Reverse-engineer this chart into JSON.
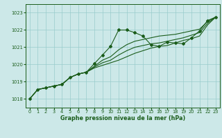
{
  "title": "Graphe pression niveau de la mer (hPa)",
  "bg_color": "#cce8e8",
  "grid_color": "#99cccc",
  "line_color": "#1a5c1a",
  "text_color": "#1a5c1a",
  "xlim": [
    -0.5,
    23.5
  ],
  "ylim": [
    1017.5,
    1023.5
  ],
  "yticks": [
    1018,
    1019,
    1020,
    1021,
    1022,
    1023
  ],
  "xticks": [
    0,
    1,
    2,
    3,
    4,
    5,
    6,
    7,
    8,
    9,
    10,
    11,
    12,
    13,
    14,
    15,
    16,
    17,
    18,
    19,
    20,
    21,
    22,
    23
  ],
  "series": [
    [
      1018.0,
      1018.55,
      1018.65,
      1018.75,
      1018.85,
      1019.25,
      1019.45,
      1019.55,
      1020.05,
      1020.55,
      1021.05,
      1022.0,
      1022.0,
      1021.85,
      1021.65,
      1021.15,
      1021.05,
      1021.3,
      1021.25,
      1021.2,
      1021.55,
      1021.95,
      1022.55,
      1022.75
    ],
    [
      1018.0,
      1018.55,
      1018.65,
      1018.75,
      1018.85,
      1019.25,
      1019.45,
      1019.55,
      1019.9,
      1020.25,
      1020.45,
      1020.85,
      1021.15,
      1021.35,
      1021.45,
      1021.55,
      1021.65,
      1021.7,
      1021.75,
      1021.85,
      1021.95,
      1022.05,
      1022.5,
      1022.75
    ],
    [
      1018.0,
      1018.55,
      1018.65,
      1018.75,
      1018.85,
      1019.25,
      1019.45,
      1019.55,
      1019.85,
      1020.1,
      1020.25,
      1020.55,
      1020.8,
      1021.0,
      1021.1,
      1021.2,
      1021.25,
      1021.35,
      1021.45,
      1021.55,
      1021.7,
      1021.85,
      1022.4,
      1022.75
    ],
    [
      1018.0,
      1018.55,
      1018.65,
      1018.75,
      1018.85,
      1019.25,
      1019.45,
      1019.55,
      1019.8,
      1019.95,
      1020.1,
      1020.25,
      1020.45,
      1020.65,
      1020.8,
      1020.95,
      1021.05,
      1021.1,
      1021.25,
      1021.4,
      1021.5,
      1021.65,
      1022.3,
      1022.75
    ]
  ],
  "marker_series": 0,
  "marker": "D",
  "markersize": 2.0,
  "linewidth": 0.8,
  "tick_fontsize": 4.8,
  "xlabel_fontsize": 5.8
}
